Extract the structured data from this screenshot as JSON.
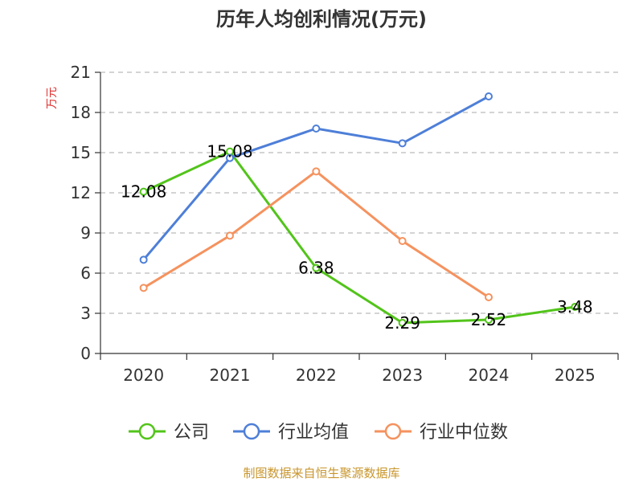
{
  "chart_data": {
    "type": "line",
    "title": "历年人均创利情况(万元)",
    "ylabel": "万元",
    "categories": [
      "2020",
      "2021",
      "2022",
      "2023",
      "2024",
      "2025"
    ],
    "ylim": [
      0,
      21
    ],
    "yticks": [
      0,
      3,
      6,
      9,
      12,
      15,
      18,
      21
    ],
    "grid": true,
    "legend_position": "bottom",
    "series": [
      {
        "name": "公司",
        "color": "#52c41a",
        "values": [
          12.08,
          15.08,
          6.38,
          2.29,
          2.52,
          3.48
        ],
        "labels": [
          "12.08",
          "15.08",
          "6.38",
          "2.29",
          "2.52",
          "3.48"
        ]
      },
      {
        "name": "行业均值",
        "color": "#4e7fd8",
        "values": [
          7.0,
          14.6,
          16.8,
          15.7,
          19.2,
          null
        ],
        "labels": []
      },
      {
        "name": "行业中位数",
        "color": "#f5925e",
        "values": [
          4.9,
          8.8,
          13.6,
          8.4,
          4.2,
          null
        ],
        "labels": []
      }
    ]
  },
  "source": "制图数据来自恒生聚源数据库",
  "colors": {
    "axis": "#333333",
    "grid": "#bbbbbb",
    "ytitle": "#e03030",
    "source": "#c8962e"
  }
}
